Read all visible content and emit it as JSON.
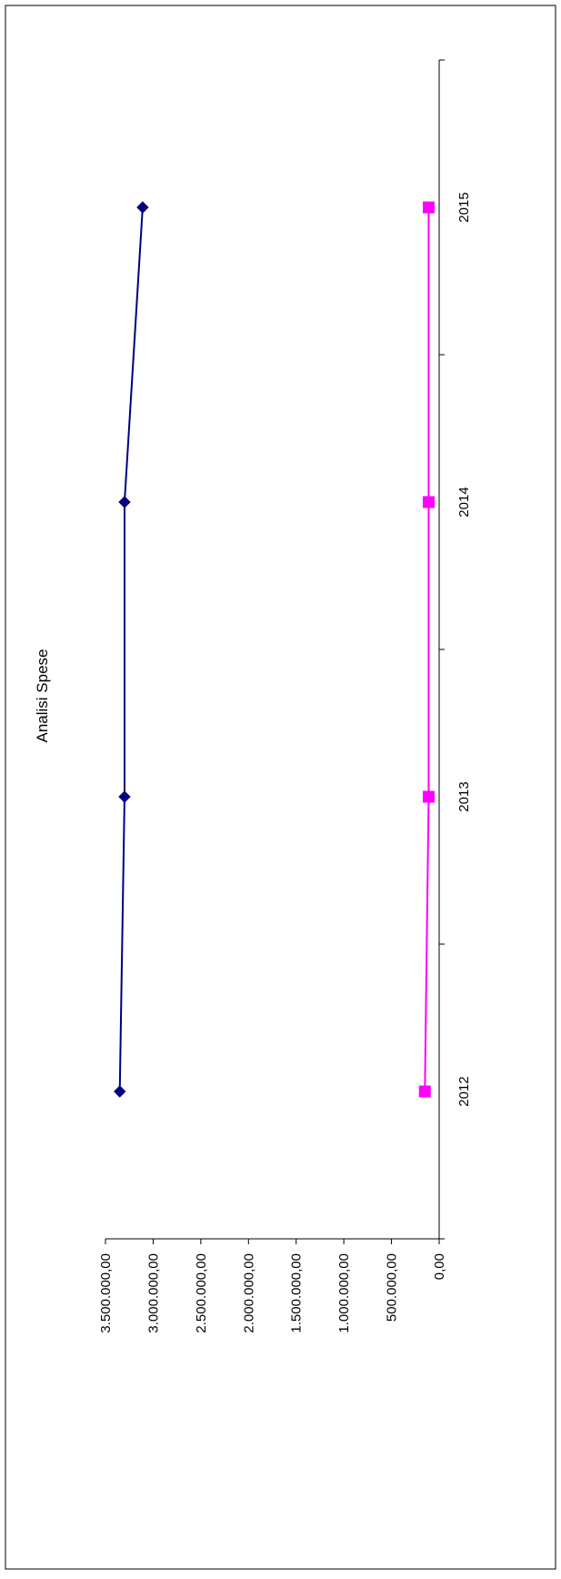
{
  "chart_data": {
    "type": "line",
    "orientation": "rotated-90",
    "title": "Analisi Spese",
    "xlabel": "",
    "ylabel": "",
    "categories": [
      "2012",
      "2013",
      "2014",
      "2015"
    ],
    "y_ticks": [
      {
        "value": 0,
        "label": "0,00"
      },
      {
        "value": 500000,
        "label": "500.000,00"
      },
      {
        "value": 1000000,
        "label": "1.000.000,00"
      },
      {
        "value": 1500000,
        "label": "1.500.000,00"
      },
      {
        "value": 2000000,
        "label": "2.000.000,00"
      },
      {
        "value": 2500000,
        "label": "2.500.000,00"
      },
      {
        "value": 3000000,
        "label": "3.000.000,00"
      },
      {
        "value": 3500000,
        "label": "3.500.000,00"
      }
    ],
    "ylim": [
      0,
      3500000
    ],
    "grid": false,
    "legend": "none",
    "series": [
      {
        "color": "#000080",
        "marker": "diamond",
        "values": [
          3350000,
          3300000,
          3300000,
          3110000
        ]
      },
      {
        "color": "#ff00ff",
        "marker": "square",
        "values": [
          150000,
          110000,
          110000,
          110000
        ]
      }
    ]
  }
}
